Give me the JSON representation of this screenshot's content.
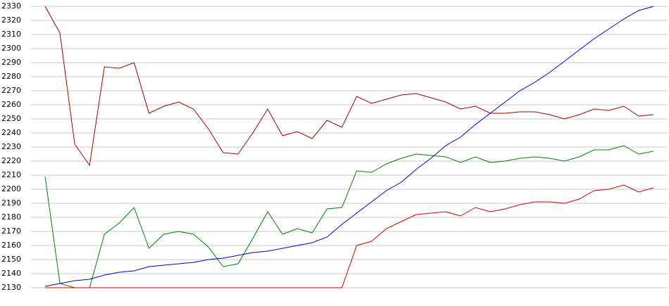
{
  "chart_data": {
    "type": "line",
    "categories": [
      null,
      null,
      null,
      null,
      null,
      null,
      null,
      null,
      null,
      null,
      null,
      null,
      null,
      null,
      null,
      null,
      null,
      null,
      null,
      null,
      null,
      null,
      null,
      null,
      null,
      null,
      null,
      null,
      null,
      null,
      null,
      null,
      null,
      null,
      null,
      null,
      null,
      null,
      null,
      null,
      null,
      null
    ],
    "series": [
      {
        "color": "#a00000",
        "values": [
          2330,
          2311,
          2232,
          2217,
          2287,
          2286,
          2290,
          2254,
          2259,
          2262,
          2257,
          2243,
          2226,
          2225,
          2240,
          2257,
          2238,
          2241,
          2236,
          2249,
          2244,
          2266,
          2261,
          2264,
          2267,
          2268,
          2265,
          2262,
          2257,
          2259,
          2254,
          2254,
          2255,
          2255,
          2253,
          2250,
          2253,
          2257,
          2256,
          2259,
          2252,
          2253
        ]
      },
      {
        "color": "#008000",
        "values": [
          2209,
          2133,
          2130,
          2130,
          2168,
          2176,
          2187,
          2158,
          2168,
          2170,
          2168,
          2159,
          2145,
          2147,
          2165,
          2184,
          2168,
          2172,
          2169,
          2186,
          2187,
          2213,
          2212,
          2218,
          2222,
          2225,
          2224,
          2223,
          2219,
          2223,
          2219,
          2220,
          2222,
          2223,
          2222,
          2220,
          2223,
          2228,
          2228,
          2231,
          2225,
          2227
        ]
      },
      {
        "color": "#cc0000",
        "values": [
          2130,
          2130,
          2130,
          2130,
          2130,
          2130,
          2130,
          2130,
          2130,
          2130,
          2130,
          2130,
          2130,
          2130,
          2130,
          2130,
          2130,
          2130,
          2130,
          2130,
          2130,
          2160,
          2163,
          2172,
          2177,
          2182,
          2183,
          2184,
          2181,
          2187,
          2184,
          2186,
          2189,
          2191,
          2191,
          2190,
          2193,
          2199,
          2200,
          2203,
          2198,
          2201
        ]
      },
      {
        "color": "#0000cc",
        "values": [
          2131,
          2133,
          2135,
          2136,
          2139,
          2141,
          2142,
          2145,
          2146,
          2147,
          2148,
          2150,
          2151,
          2153,
          2155,
          2156,
          2158,
          2160,
          2162,
          2166,
          2175,
          2183,
          2191,
          2199,
          2205,
          2214,
          2222,
          2231,
          2237,
          2246,
          2254,
          2262,
          2270,
          2276,
          2283,
          2291,
          2299,
          2307,
          2314,
          2321,
          2327,
          2330
        ]
      }
    ],
    "ylim": [
      2130,
      2330
    ],
    "yticks": [
      2130,
      2140,
      2150,
      2160,
      2170,
      2180,
      2190,
      2200,
      2210,
      2220,
      2230,
      2240,
      2250,
      2260,
      2270,
      2280,
      2290,
      2300,
      2310,
      2320,
      2330
    ],
    "grid": true
  }
}
